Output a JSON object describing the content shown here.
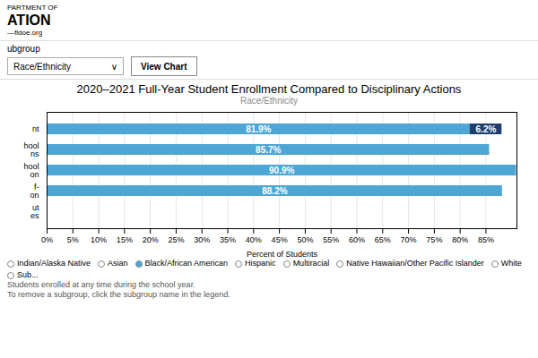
{
  "chart_data": {
    "type": "bar",
    "orientation": "horizontal",
    "stacked": true,
    "header_lines": [
      "PARTMENT OF",
      "ATION",
      "—fldoe.org"
    ],
    "subgroup_label": "ubgroup",
    "dropdown_text": "Race/Ethnicity",
    "dropdown_arrow": "∨",
    "button_text": "View Chart",
    "title": "2020–2021 Full-Year Student Enrollment Compared to Disciplinary Actions",
    "subtitle": "Race/Ethnicity",
    "xlabel": "Percent of Students",
    "categories": [
      "  nt",
      "  hool\n  ns",
      "  hool\n  on",
      "  f-\n  on",
      "  ut\n  es"
    ],
    "series": [
      {
        "color": "#4da6d4",
        "values": [
          81.9,
          85.7,
          90.9,
          88.2,
          0
        ],
        "value_labels": [
          "81.9%",
          "85.7%",
          "90.9%",
          "88.2%",
          null
        ]
      },
      {
        "color": "#1e3f6e",
        "values": [
          6.2,
          0,
          0,
          0,
          0
        ],
        "value_labels": [
          "6.2%",
          null,
          null,
          null,
          null
        ]
      }
    ],
    "data_labels": true,
    "xlim": [
      0,
      91
    ],
    "xticks": [
      {
        "value": 0,
        "label": "0%"
      },
      {
        "value": 5,
        "label": "5%"
      },
      {
        "value": 10,
        "label": "10%"
      },
      {
        "value": 15,
        "label": "15%"
      },
      {
        "value": 20,
        "label": "20%"
      },
      {
        "value": 25,
        "label": "25%"
      },
      {
        "value": 30,
        "label": "30%"
      },
      {
        "value": 35,
        "label": "35%"
      },
      {
        "value": 40,
        "label": "40%"
      },
      {
        "value": 45,
        "label": "45%"
      },
      {
        "value": 50,
        "label": "50%"
      },
      {
        "value": 55,
        "label": "55%"
      },
      {
        "value": 60,
        "label": "60%"
      },
      {
        "value": 65,
        "label": "65%"
      },
      {
        "value": 70,
        "label": "70%"
      },
      {
        "value": 75,
        "label": "75%"
      },
      {
        "value": 80,
        "label": "80%"
      },
      {
        "value": 85,
        "label": "85%"
      }
    ],
    "grid": true,
    "legend": "lower left",
    "legend_entries": [
      {
        "label": "Indian/Alaska Native",
        "color": "#ffffff"
      },
      {
        "label": "Asian",
        "color": "#ffffff"
      },
      {
        "label": "Black/African American",
        "color": "#4da6d4"
      },
      {
        "label": "Hispanic",
        "color": "#ffffff"
      },
      {
        "label": "Multiracial",
        "color": "#ffffff"
      },
      {
        "label": "Native Hawaiian/Other Pacific Islander",
        "color": "#ffffff"
      },
      {
        "label": "White",
        "color": "#ffffff"
      },
      {
        "label": "Sub...",
        "color": "#ffffff"
      }
    ],
    "notes": [
      "Students enrolled at any time during the school year.",
      "To remove a subgroup, click the subgroup name in the legend."
    ]
  }
}
